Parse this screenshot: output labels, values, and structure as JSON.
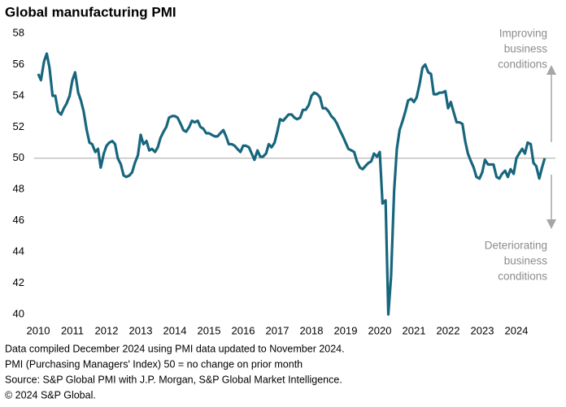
{
  "chart_data": {
    "type": "line",
    "title": "Global manufacturing PMI",
    "x": [
      2010.0,
      2010.08,
      2010.17,
      2010.25,
      2010.33,
      2010.42,
      2010.5,
      2010.58,
      2010.67,
      2010.75,
      2010.83,
      2010.92,
      2011.0,
      2011.08,
      2011.17,
      2011.25,
      2011.33,
      2011.42,
      2011.5,
      2011.58,
      2011.67,
      2011.75,
      2011.83,
      2011.92,
      2012.0,
      2012.08,
      2012.17,
      2012.25,
      2012.33,
      2012.42,
      2012.5,
      2012.58,
      2012.67,
      2012.75,
      2012.83,
      2012.92,
      2013.0,
      2013.08,
      2013.17,
      2013.25,
      2013.33,
      2013.42,
      2013.5,
      2013.58,
      2013.67,
      2013.75,
      2013.83,
      2013.92,
      2014.0,
      2014.08,
      2014.17,
      2014.25,
      2014.33,
      2014.42,
      2014.5,
      2014.58,
      2014.67,
      2014.75,
      2014.83,
      2014.92,
      2015.0,
      2015.08,
      2015.17,
      2015.25,
      2015.33,
      2015.42,
      2015.5,
      2015.58,
      2015.67,
      2015.75,
      2015.83,
      2015.92,
      2016.0,
      2016.08,
      2016.17,
      2016.25,
      2016.33,
      2016.42,
      2016.5,
      2016.58,
      2016.67,
      2016.75,
      2016.83,
      2016.92,
      2017.0,
      2017.08,
      2017.17,
      2017.25,
      2017.33,
      2017.42,
      2017.5,
      2017.58,
      2017.67,
      2017.75,
      2017.83,
      2017.92,
      2018.0,
      2018.08,
      2018.17,
      2018.25,
      2018.33,
      2018.42,
      2018.5,
      2018.58,
      2018.67,
      2018.75,
      2018.83,
      2018.92,
      2019.0,
      2019.08,
      2019.17,
      2019.25,
      2019.33,
      2019.42,
      2019.5,
      2019.58,
      2019.67,
      2019.75,
      2019.83,
      2019.92,
      2020.0,
      2020.08,
      2020.17,
      2020.25,
      2020.33,
      2020.42,
      2020.5,
      2020.58,
      2020.67,
      2020.75,
      2020.83,
      2020.92,
      2021.0,
      2021.08,
      2021.17,
      2021.25,
      2021.33,
      2021.42,
      2021.5,
      2021.58,
      2021.67,
      2021.75,
      2021.83,
      2021.92,
      2022.0,
      2022.08,
      2022.17,
      2022.25,
      2022.33,
      2022.42,
      2022.5,
      2022.58,
      2022.67,
      2022.75,
      2022.83,
      2022.92,
      2023.0,
      2023.08,
      2023.17,
      2023.25,
      2023.33,
      2023.42,
      2023.5,
      2023.58,
      2023.67,
      2023.75,
      2023.83,
      2023.92,
      2024.0,
      2024.08,
      2024.17,
      2024.25,
      2024.33,
      2024.42,
      2024.5,
      2024.58,
      2024.67,
      2024.75,
      2024.83
    ],
    "series": [
      {
        "name": "Global manufacturing PMI",
        "color": "#17667d",
        "values": [
          55.4,
          55.0,
          56.2,
          56.7,
          55.8,
          54.0,
          54.0,
          53.0,
          52.8,
          53.2,
          53.5,
          54.0,
          55.0,
          55.5,
          54.2,
          53.7,
          53.0,
          51.8,
          51.0,
          50.9,
          50.4,
          50.6,
          49.4,
          50.3,
          50.8,
          51.0,
          51.1,
          50.9,
          50.0,
          49.6,
          48.9,
          48.8,
          48.9,
          49.1,
          49.7,
          50.2,
          51.5,
          50.9,
          51.1,
          50.5,
          50.6,
          50.4,
          50.7,
          51.3,
          51.7,
          52.0,
          52.6,
          52.7,
          52.7,
          52.6,
          52.2,
          51.8,
          51.7,
          52.0,
          52.4,
          52.3,
          52.4,
          52.0,
          51.9,
          51.6,
          51.6,
          51.5,
          51.4,
          51.4,
          51.6,
          51.8,
          51.4,
          50.9,
          50.9,
          50.8,
          50.6,
          50.4,
          50.8,
          50.8,
          50.7,
          50.3,
          49.9,
          50.5,
          50.1,
          50.1,
          50.3,
          50.9,
          50.7,
          51.0,
          51.7,
          52.5,
          52.4,
          52.6,
          52.8,
          52.8,
          52.6,
          52.5,
          52.6,
          53.1,
          53.1,
          53.4,
          54.0,
          54.2,
          54.1,
          53.9,
          53.2,
          53.2,
          53.0,
          52.7,
          52.5,
          52.2,
          51.8,
          51.4,
          51.0,
          50.6,
          50.5,
          50.4,
          49.8,
          49.4,
          49.3,
          49.5,
          49.7,
          49.8,
          50.3,
          50.1,
          50.4,
          47.1,
          47.3,
          40.0,
          42.4,
          47.9,
          50.6,
          51.8,
          52.4,
          53.0,
          53.7,
          53.8,
          53.6,
          53.9,
          54.8,
          55.8,
          56.0,
          55.5,
          55.4,
          54.1,
          54.1,
          54.2,
          54.2,
          54.3,
          53.2,
          53.6,
          52.9,
          52.3,
          52.3,
          52.2,
          51.1,
          50.3,
          49.8,
          49.4,
          48.8,
          48.7,
          49.1,
          49.9,
          49.6,
          49.6,
          49.6,
          48.8,
          48.7,
          49.0,
          49.2,
          48.8,
          49.3,
          49.0,
          50.0,
          50.3,
          50.6,
          50.3,
          51.0,
          50.9,
          49.7,
          49.5,
          48.7,
          49.4,
          50.0
        ]
      }
    ],
    "xlim": [
      2010,
      2025
    ],
    "xticks": [
      2010,
      2011,
      2012,
      2013,
      2014,
      2015,
      2016,
      2017,
      2018,
      2019,
      2020,
      2021,
      2022,
      2023,
      2024
    ],
    "ylim": [
      40,
      58
    ],
    "yticks": [
      40,
      42,
      44,
      46,
      48,
      50,
      52,
      54,
      56,
      58
    ],
    "reference_line": 50,
    "annotations": [
      {
        "lines": [
          "Improving",
          "business",
          "conditions"
        ]
      },
      {
        "lines": [
          "Deteriorating",
          "business",
          "conditions"
        ]
      }
    ],
    "notes": [
      "Data compiled December 2024 using PMI data updated to November 2024.",
      "PMI (Purchasing Managers' Index) 50 = no change on prior month",
      "Source: S&P Global  PMI with J.P. Morgan, S&P Global Market Intelligence.",
      "© 2024 S&P Global."
    ]
  }
}
